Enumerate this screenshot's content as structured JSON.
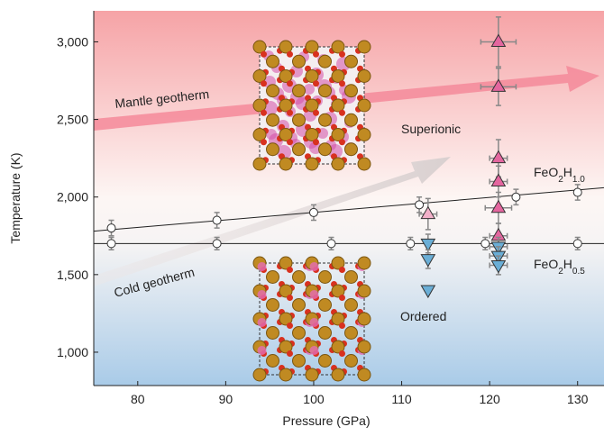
{
  "chart_data": {
    "type": "scatter",
    "xlabel": "Pressure (GPa)",
    "ylabel": "Temperature (K)",
    "xlim": [
      75,
      133
    ],
    "ylim": [
      785,
      3200
    ],
    "xticks": [
      80,
      90,
      100,
      110,
      120,
      130
    ],
    "yticks": [
      {
        "value": 1000,
        "label": "1,000"
      },
      {
        "value": 1500,
        "label": "1,500"
      },
      {
        "value": 2000,
        "label": "2,000"
      },
      {
        "value": 2500,
        "label": "2,500"
      },
      {
        "value": 3000,
        "label": "3,000"
      }
    ],
    "series": [
      {
        "marker": "circle",
        "color": "#ffffff",
        "x": [
          77,
          89,
          100,
          112,
          123,
          130
        ],
        "values": [
          1800,
          1850,
          1900,
          1950,
          2000,
          2030
        ],
        "yerr": [
          50,
          50,
          50,
          50,
          50,
          50
        ],
        "xerr": [
          0,
          0,
          0,
          0,
          0,
          0
        ]
      },
      {
        "marker": "circle",
        "color": "#ffffff",
        "x": [
          77,
          89,
          102,
          111,
          119.5,
          130
        ],
        "values": [
          1700,
          1700,
          1700,
          1700,
          1700,
          1700
        ],
        "yerr": [
          40,
          40,
          40,
          40,
          40,
          40
        ],
        "xerr": [
          0,
          0,
          0,
          0,
          0,
          0
        ]
      },
      {
        "marker": "triangle-up",
        "color": "#e4669f",
        "x": [
          121,
          121,
          121,
          121,
          121,
          121
        ],
        "values": [
          3000,
          2710,
          2250,
          2100,
          1930,
          1750
        ],
        "yerr": [
          160,
          120,
          120,
          100,
          100,
          80
        ],
        "xerr": [
          2,
          2,
          1,
          1,
          1.5,
          1
        ]
      },
      {
        "marker": "triangle-up",
        "color": "#f2b0c9",
        "x": [
          113
        ],
        "values": [
          1890
        ],
        "yerr": [
          100
        ],
        "xerr": [
          1
        ]
      },
      {
        "marker": "triangle-down",
        "color": "#6aaed6",
        "x": [
          113,
          113,
          113,
          121,
          121,
          121
        ],
        "values": [
          1700,
          1600,
          1400,
          1680,
          1620,
          1560
        ],
        "yerr": [
          60,
          60,
          0,
          60,
          60,
          60
        ],
        "xerr": [
          0,
          0,
          0,
          1,
          1,
          1
        ]
      }
    ],
    "lines": [
      {
        "x": [
          75,
          133
        ],
        "values": [
          1780,
          2060
        ]
      },
      {
        "x": [
          75,
          133
        ],
        "values": [
          1700,
          1700
        ]
      }
    ],
    "annotations": [
      {
        "text": "Mantle geotherm"
      },
      {
        "text": "Cold geotherm"
      },
      {
        "text": "Superionic"
      },
      {
        "text": "Ordered"
      },
      {
        "text_parts": [
          "FeO",
          "2",
          "H",
          "1.0"
        ]
      },
      {
        "text_parts": [
          "FeO",
          "2",
          "H",
          "0.5"
        ]
      }
    ]
  }
}
